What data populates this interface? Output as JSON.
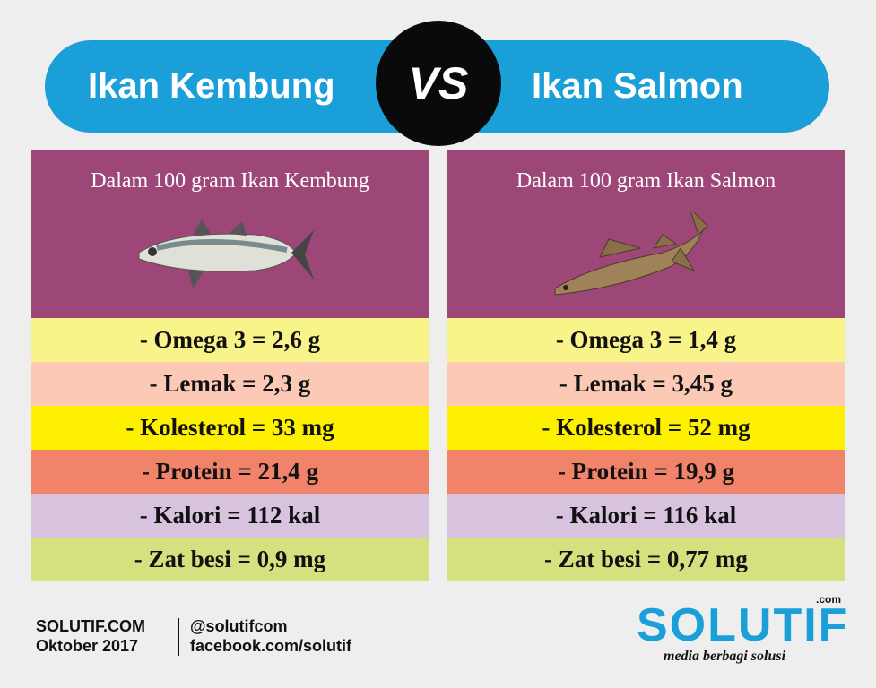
{
  "header": {
    "left": "Ikan Kembung",
    "vs": "VS",
    "right": "Ikan Salmon"
  },
  "panels": [
    {
      "heading": "Dalam 100 gram Ikan Kembung",
      "rows": [
        "- Omega 3 = 2,6 g",
        "- Lemak = 2,3 g",
        "- Kolesterol = 33 mg",
        "- Protein = 21,4 g",
        "- Kalori = 112 kal",
        "- Zat besi = 0,9 mg"
      ]
    },
    {
      "heading": "Dalam 100 gram Ikan Salmon",
      "rows": [
        "- Omega 3 = 1,4 g",
        "- Lemak = 3,45 g",
        "- Kolesterol = 52 mg",
        "- Protein = 19,9 g",
        "- Kalori = 116 kal",
        "- Zat besi = 0,77 mg"
      ]
    }
  ],
  "footer": {
    "site": "SOLUTIF.COM",
    "date": "Oktober 2017",
    "twitter": "@solutifcom",
    "facebook": "facebook.com/solutif"
  },
  "logo": {
    "name": "SOLUTIF",
    "tld": ".com",
    "tagline": "media berbagi solusi"
  }
}
